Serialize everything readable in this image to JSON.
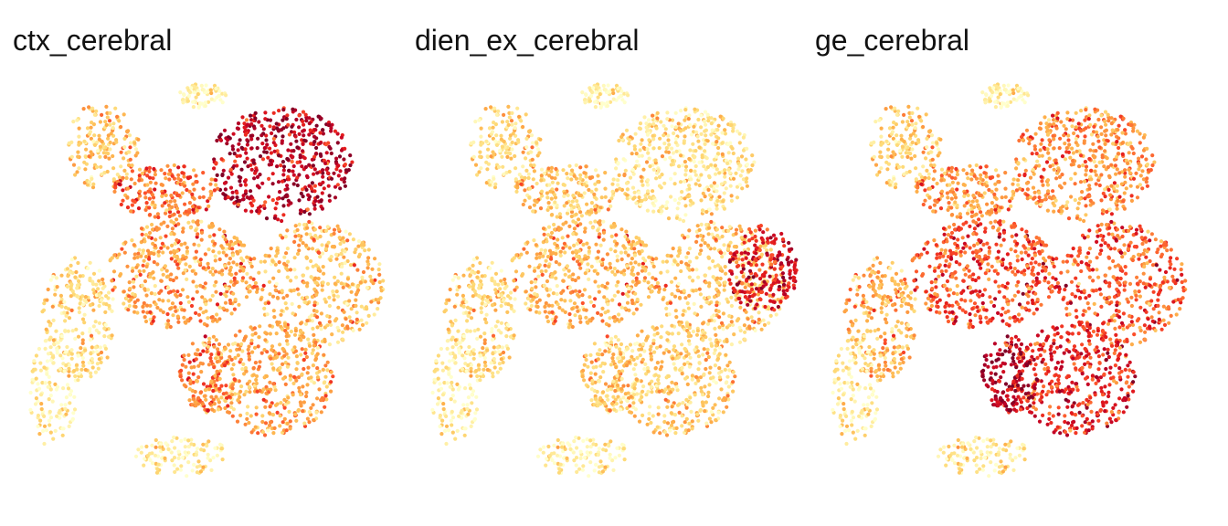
{
  "chart_data": [
    {
      "type": "scatter",
      "title": "ctx_cerebral",
      "xlabel": "",
      "ylabel": "",
      "grid": false,
      "axes_visible": false,
      "colormap": [
        "#ffffcc",
        "#ffeda0",
        "#fed976",
        "#feb24c",
        "#fd8d3c",
        "#fc4e2a",
        "#e31a1c",
        "#bd0026",
        "#800026"
      ],
      "regions": [
        {
          "name": "top-right-cluster",
          "level": 0.88
        },
        {
          "name": "upper-left-cluster",
          "level": 0.28
        },
        {
          "name": "upper-middle-band",
          "level": 0.55
        },
        {
          "name": "left-lobe",
          "level": 0.22
        },
        {
          "name": "central-mass",
          "level": 0.42
        },
        {
          "name": "right-mass",
          "level": 0.33
        },
        {
          "name": "lower-mass",
          "level": 0.4
        },
        {
          "name": "lower-left-arm",
          "level": 0.5
        },
        {
          "name": "top-small-blob",
          "level": 0.04
        },
        {
          "name": "bottom-tail",
          "level": 0.12
        },
        {
          "name": "left-strands",
          "level": 0.1
        }
      ]
    },
    {
      "type": "scatter",
      "title": "dien_ex_cerebral",
      "xlabel": "",
      "ylabel": "",
      "grid": false,
      "axes_visible": false,
      "colormap": [
        "#ffffcc",
        "#ffeda0",
        "#fed976",
        "#feb24c",
        "#fd8d3c",
        "#fc4e2a",
        "#e31a1c",
        "#bd0026",
        "#800026"
      ],
      "regions": [
        {
          "name": "top-right-cluster",
          "level": 0.2
        },
        {
          "name": "upper-left-cluster",
          "level": 0.2
        },
        {
          "name": "upper-middle-band",
          "level": 0.3
        },
        {
          "name": "left-lobe",
          "level": 0.24
        },
        {
          "name": "central-mass",
          "level": 0.36
        },
        {
          "name": "right-mass",
          "level": 0.3
        },
        {
          "name": "lower-mass",
          "level": 0.27
        },
        {
          "name": "lower-left-arm",
          "level": 0.27
        },
        {
          "name": "top-small-blob",
          "level": 0.04
        },
        {
          "name": "bottom-tail",
          "level": 0.1
        },
        {
          "name": "left-strands",
          "level": 0.1
        },
        {
          "name": "right-edge-cluster",
          "level": 0.78
        }
      ]
    },
    {
      "type": "scatter",
      "title": "ge_cerebral",
      "xlabel": "",
      "ylabel": "",
      "grid": false,
      "axes_visible": false,
      "colormap": [
        "#ffffcc",
        "#ffeda0",
        "#fed976",
        "#feb24c",
        "#fd8d3c",
        "#fc4e2a",
        "#e31a1c",
        "#bd0026",
        "#800026"
      ],
      "regions": [
        {
          "name": "top-right-cluster",
          "level": 0.48
        },
        {
          "name": "upper-left-cluster",
          "level": 0.24
        },
        {
          "name": "upper-middle-band",
          "level": 0.45
        },
        {
          "name": "left-lobe",
          "level": 0.38
        },
        {
          "name": "central-mass",
          "level": 0.62
        },
        {
          "name": "right-mass",
          "level": 0.6
        },
        {
          "name": "lower-mass",
          "level": 0.72
        },
        {
          "name": "lower-left-arm",
          "level": 0.88
        },
        {
          "name": "top-small-blob",
          "level": 0.05
        },
        {
          "name": "bottom-tail",
          "level": 0.15
        },
        {
          "name": "left-strands",
          "level": 0.12
        }
      ]
    }
  ]
}
